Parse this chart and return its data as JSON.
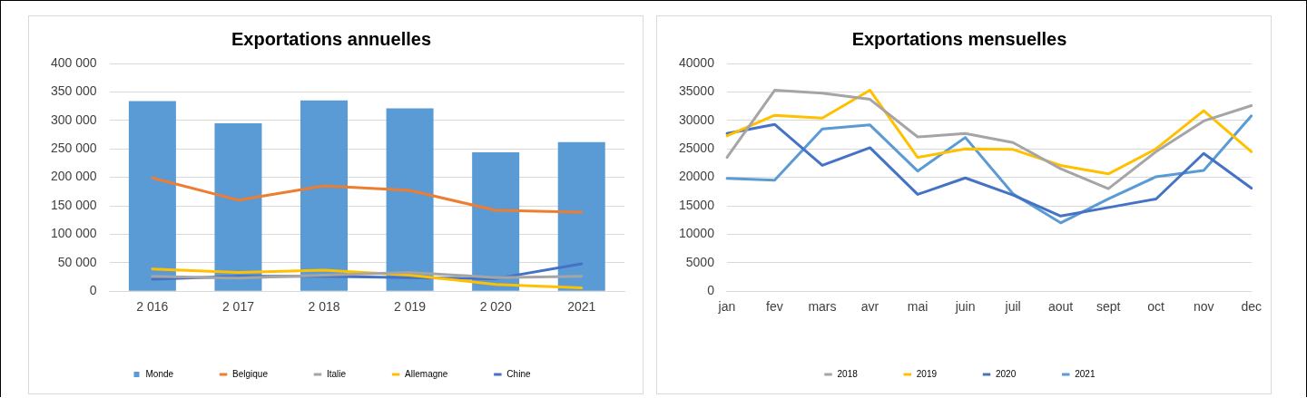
{
  "chart_data": [
    {
      "type": "bar",
      "title": "Exportations annuelles",
      "categories": [
        "2 016",
        "2 017",
        "2 018",
        "2 019",
        "2 020",
        "2021"
      ],
      "series": [
        {
          "name": "Monde",
          "color": "#5b9bd5",
          "values": [
            334000,
            295000,
            335000,
            321000,
            244000,
            262000
          ]
        },
        {
          "name": "Belgique",
          "type": "line",
          "color": "#ed7d31",
          "values": [
            199000,
            160000,
            185000,
            177000,
            142000,
            139000
          ]
        },
        {
          "name": "Italie",
          "type": "line",
          "color": "#a5a5a5",
          "values": [
            26000,
            23000,
            28000,
            33000,
            24000,
            26000
          ]
        },
        {
          "name": "Allemagne",
          "type": "line",
          "color": "#ffc000",
          "values": [
            39000,
            33000,
            37000,
            28000,
            12000,
            6000
          ]
        },
        {
          "name": "Chine",
          "type": "line",
          "color": "#4472c4",
          "values": [
            21000,
            26000,
            26000,
            24000,
            22000,
            48000
          ]
        }
      ],
      "ylim": [
        0,
        400000
      ],
      "yticks": [
        0,
        {
          "value": 50000,
          "label": "50 000"
        },
        {
          "value": 100000,
          "label": "100 000"
        },
        {
          "value": 150000,
          "label": "150 000"
        },
        {
          "value": 200000,
          "label": "200 000"
        },
        {
          "value": 250000,
          "label": "250 000"
        },
        {
          "value": 300000,
          "label": "300 000"
        },
        {
          "value": 350000,
          "label": "350 000"
        },
        {
          "value": 400000,
          "label": "400 000"
        }
      ],
      "grid": "y",
      "legend": "bottom",
      "marker": "none",
      "line_style": "solid"
    },
    {
      "type": "line",
      "title": "Exportations mensuelles",
      "categories": [
        "jan",
        "fev",
        "mars",
        "avr",
        "mai",
        "juin",
        "juil",
        "aout",
        "sept",
        "oct",
        "nov",
        "dec"
      ],
      "series": [
        {
          "name": "2018",
          "color": "#a5a5a5",
          "values": [
            23500,
            35300,
            34800,
            33700,
            27100,
            27700,
            26100,
            21500,
            18000,
            24500,
            29900,
            32600
          ]
        },
        {
          "name": "2019",
          "color": "#ffc000",
          "values": [
            27300,
            30900,
            30400,
            35300,
            23500,
            25000,
            24900,
            22100,
            20600,
            25000,
            31700,
            24500
          ]
        },
        {
          "name": "2020",
          "color": "#4472c4",
          "values": [
            27700,
            29300,
            22100,
            25200,
            17000,
            19900,
            16900,
            13200,
            14700,
            16200,
            24200,
            18100
          ]
        },
        {
          "name": "2021",
          "color": "#5b9bd5",
          "values": [
            19800,
            19500,
            28500,
            29200,
            21100,
            27000,
            17100,
            12000,
            16200,
            20100,
            21200,
            30800
          ]
        }
      ],
      "ylim": [
        0,
        40000
      ],
      "yticks": [
        0,
        5000,
        10000,
        15000,
        20000,
        25000,
        30000,
        35000,
        40000
      ],
      "grid": "y",
      "legend": "bottom",
      "marker": "none",
      "line_style": "solid"
    }
  ]
}
